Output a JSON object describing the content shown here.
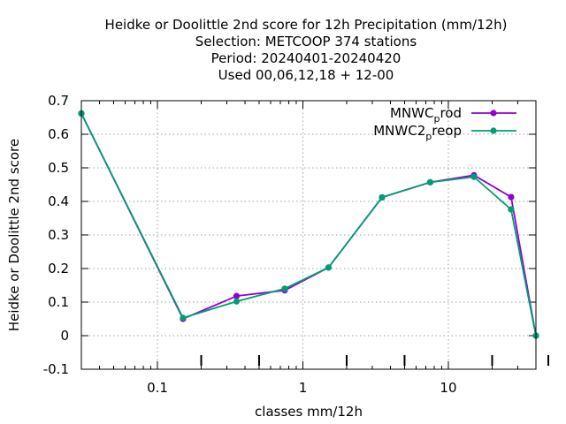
{
  "chart_data": {
    "type": "line",
    "title_lines": [
      "Heidke or Doolittle 2nd score  for 12h Precipitation (mm/12h)",
      "Selection: METCOOP    374 stations",
      "Period: 20240401-20240420",
      "Used  00,06,12,18 + 12-00"
    ],
    "xlabel": "classes mm/12h",
    "ylabel": "Heidke or Doolittle 2nd score",
    "x_scale": "log",
    "xlim": [
      0.03,
      40
    ],
    "ylim": [
      -0.1,
      0.7
    ],
    "x_ticks": [
      {
        "value": 0.1,
        "label": "0.1"
      },
      {
        "value": 1,
        "label": "1"
      },
      {
        "value": 10,
        "label": "10"
      }
    ],
    "y_ticks": [
      {
        "value": -0.1,
        "label": "-0.1"
      },
      {
        "value": 0,
        "label": "0"
      },
      {
        "value": 0.1,
        "label": "0.1"
      },
      {
        "value": 0.2,
        "label": "0.2"
      },
      {
        "value": 0.3,
        "label": "0.3"
      },
      {
        "value": 0.4,
        "label": "0.4"
      },
      {
        "value": 0.5,
        "label": "0.5"
      },
      {
        "value": 0.6,
        "label": "0.6"
      },
      {
        "value": 0.7,
        "label": "0.7"
      }
    ],
    "grid": true,
    "legend_position": "top-right",
    "series": [
      {
        "name_main": "MNWC",
        "name_sub": "p",
        "name_tail": "rod",
        "color": "#9400d3",
        "x": [
          0.03,
          0.15,
          0.35,
          0.75,
          1.5,
          3.5,
          7.5,
          15,
          27,
          40
        ],
        "y": [
          0.662,
          0.05,
          0.118,
          0.135,
          0.203,
          0.412,
          0.457,
          0.478,
          0.413,
          0.0
        ]
      },
      {
        "name_main": "MNWC2",
        "name_sub": "p",
        "name_tail": "reop",
        "color": "#009e73",
        "x": [
          0.03,
          0.15,
          0.35,
          0.75,
          1.5,
          3.5,
          7.5,
          15,
          27,
          40
        ],
        "y": [
          0.662,
          0.053,
          0.102,
          0.14,
          0.203,
          0.412,
          0.457,
          0.473,
          0.376,
          0.0
        ]
      }
    ]
  }
}
